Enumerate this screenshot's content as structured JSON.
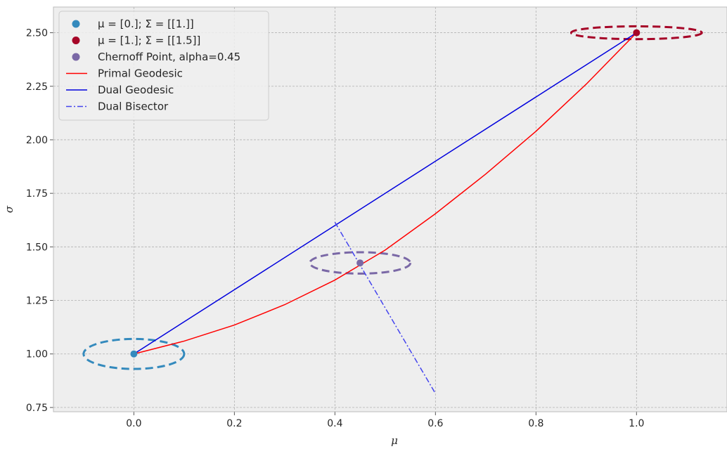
{
  "chart_data": {
    "type": "line",
    "title": "",
    "xlabel": "μ",
    "ylabel": "σ",
    "xlim": [
      -0.16,
      1.18
    ],
    "ylim": [
      0.73,
      2.62
    ],
    "x_ticks": [
      0.0,
      0.2,
      0.4,
      0.6,
      0.8,
      1.0
    ],
    "x_tick_labels": [
      "0.0",
      "0.2",
      "0.4",
      "0.6",
      "0.8",
      "1.0"
    ],
    "y_ticks": [
      0.75,
      1.0,
      1.25,
      1.5,
      1.75,
      2.0,
      2.25,
      2.5
    ],
    "y_tick_labels": [
      "0.75",
      "1.00",
      "1.25",
      "1.50",
      "1.75",
      "2.00",
      "2.25",
      "2.50"
    ],
    "grid": true,
    "legend_placement": "top-left",
    "background_color": "#eeeeee",
    "points": [
      {
        "name": "μ = [0.]; Σ = [[1.]]",
        "x": 0.0,
        "y": 1.0,
        "color": "#348abd"
      },
      {
        "name": "μ = [1.]; Σ = [[1.5]]",
        "x": 1.0,
        "y": 2.5,
        "color": "#a60628"
      },
      {
        "name": "Chernoff Point, alpha=0.45",
        "x": 0.45,
        "y": 1.425,
        "color": "#7a68a6"
      }
    ],
    "ellipses": [
      {
        "cx": 0.0,
        "cy": 1.0,
        "rx": 0.1,
        "ry": 0.07,
        "color": "#348abd"
      },
      {
        "cx": 1.0,
        "cy": 2.5,
        "rx": 0.13,
        "ry": 0.03,
        "color": "#a60628"
      },
      {
        "cx": 0.45,
        "cy": 1.425,
        "rx": 0.1,
        "ry": 0.05,
        "color": "#7a68a6"
      }
    ],
    "series": [
      {
        "name": "Primal Geodesic",
        "color": "#ff0000",
        "style": "solid",
        "x": [
          0.0,
          0.1,
          0.2,
          0.3,
          0.4,
          0.5,
          0.6,
          0.7,
          0.8,
          0.9,
          1.0
        ],
        "y": [
          1.0,
          1.06,
          1.135,
          1.23,
          1.345,
          1.485,
          1.655,
          1.84,
          2.04,
          2.26,
          2.5
        ]
      },
      {
        "name": "Dual Geodesic",
        "color": "#0000dd",
        "style": "solid",
        "x": [
          0.0,
          1.0
        ],
        "y": [
          1.0,
          2.5
        ]
      },
      {
        "name": "Dual Bisector",
        "color": "#4444ee",
        "style": "dashdot",
        "x": [
          0.4,
          0.6
        ],
        "y": [
          1.615,
          0.815
        ]
      }
    ],
    "legend": [
      {
        "label": "μ = [0.]; Σ = [[1.]]",
        "marker": "dot",
        "color": "#348abd"
      },
      {
        "label": "μ = [1.]; Σ = [[1.5]]",
        "marker": "dot",
        "color": "#a60628"
      },
      {
        "label": "Chernoff Point, alpha=0.45",
        "marker": "dot",
        "color": "#7a68a6"
      },
      {
        "label": "Primal Geodesic",
        "marker": "line",
        "color": "#ff0000"
      },
      {
        "label": "Dual Geodesic",
        "marker": "line",
        "color": "#0000dd"
      },
      {
        "label": "Dual Bisector",
        "marker": "dashdot",
        "color": "#4444ee"
      }
    ]
  }
}
